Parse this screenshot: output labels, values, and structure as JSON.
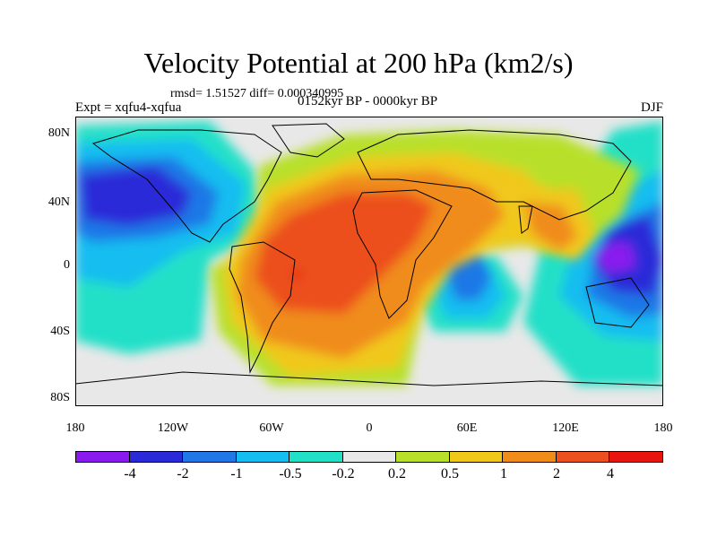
{
  "title": "Velocity Potential at 200 hPa (km2/s)",
  "stats": "rmsd= 1.51527 diff= 0.000340995",
  "expt": "Expt = xqfu4-xqfua",
  "period": "0152kyr BP - 0000kyr BP",
  "season": "DJF",
  "y_ticks": [
    "80N",
    "40N",
    "0",
    "40S",
    "80S"
  ],
  "x_ticks": [
    "180",
    "120W",
    "60W",
    "0",
    "60E",
    "120E",
    "180"
  ],
  "colorbar": {
    "labels": [
      "-4",
      "-2",
      "-1",
      "-0.5",
      "-0.2",
      "0.2",
      "0.5",
      "1",
      "2",
      "4"
    ],
    "colors": [
      "#8a1aee",
      "#2a2ad8",
      "#1f78e6",
      "#16bdf0",
      "#22e0c8",
      "#e8e8e8",
      "#b8e02a",
      "#f0c81a",
      "#f08c1a",
      "#ec501e",
      "#e8150e"
    ]
  }
}
